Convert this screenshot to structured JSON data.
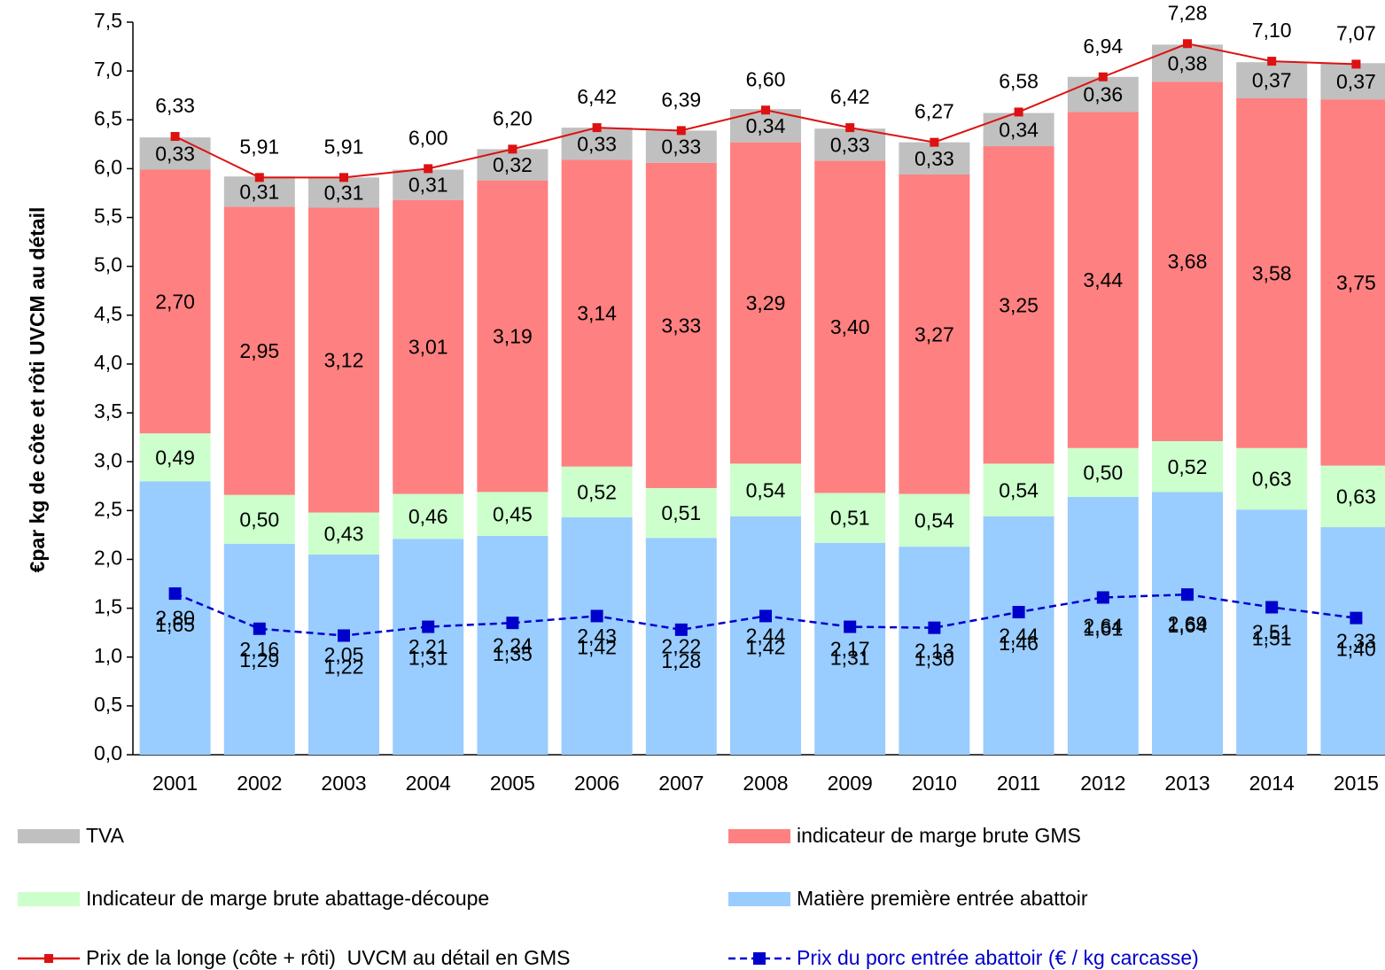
{
  "chart_data": {
    "type": "bar",
    "stacked": true,
    "ylabel": "€par kg de côte et rôti UVCM au détail",
    "categories": [
      "2001",
      "2002",
      "2003",
      "2004",
      "2005",
      "2006",
      "2007",
      "2008",
      "2009",
      "2010",
      "2011",
      "2012",
      "2013",
      "2014",
      "2015"
    ],
    "ylim": [
      0,
      7.5
    ],
    "yticks": [
      {
        "value": 0,
        "label": "0,0"
      },
      {
        "value": 0.5,
        "label": "0,5"
      },
      {
        "value": 1,
        "label": "1,0"
      },
      {
        "value": 1.5,
        "label": "1,5"
      },
      {
        "value": 2,
        "label": "2,0"
      },
      {
        "value": 2.5,
        "label": "2,5"
      },
      {
        "value": 3,
        "label": "3,0"
      },
      {
        "value": 3.5,
        "label": "3,5"
      },
      {
        "value": 4,
        "label": "4,0"
      },
      {
        "value": 4.5,
        "label": "4,5"
      },
      {
        "value": 5,
        "label": "5,0"
      },
      {
        "value": 5.5,
        "label": "5,5"
      },
      {
        "value": 6,
        "label": "6,0"
      },
      {
        "value": 6.5,
        "label": "6,5"
      },
      {
        "value": 7,
        "label": "7,0"
      },
      {
        "value": 7.5,
        "label": "7,5"
      }
    ],
    "grid": false,
    "series": [
      {
        "name": "Matière première entrée abattoir",
        "type": "bar",
        "color": "#99ccff",
        "values": [
          2.8,
          2.16,
          2.05,
          2.21,
          2.24,
          2.43,
          2.22,
          2.44,
          2.17,
          2.13,
          2.44,
          2.64,
          2.69,
          2.51,
          2.33
        ],
        "value_labels": [
          "2,80",
          "2,16",
          "2,05",
          "2,21",
          "2,24",
          "2,43",
          "2,22",
          "2,44",
          "2,17",
          "2,13",
          "2,44",
          "2,64",
          "2,69",
          "2,51",
          "2,33"
        ]
      },
      {
        "name": "Indicateur de marge brute abattage-découpe",
        "type": "bar",
        "color": "#ccffcc",
        "values": [
          0.49,
          0.5,
          0.43,
          0.46,
          0.45,
          0.52,
          0.51,
          0.54,
          0.51,
          0.54,
          0.54,
          0.5,
          0.52,
          0.63,
          0.63
        ],
        "value_labels": [
          "0,49",
          "0,50",
          "0,43",
          "0,46",
          "0,45",
          "0,52",
          "0,51",
          "0,54",
          "0,51",
          "0,54",
          "0,54",
          "0,50",
          "0,52",
          "0,63",
          "0,63"
        ]
      },
      {
        "name": "indicateur de marge brute GMS",
        "type": "bar",
        "color": "#ff8080",
        "values": [
          2.7,
          2.95,
          3.12,
          3.01,
          3.19,
          3.14,
          3.33,
          3.29,
          3.4,
          3.27,
          3.25,
          3.44,
          3.68,
          3.58,
          3.75
        ],
        "value_labels": [
          "2,70",
          "2,95",
          "3,12",
          "3,01",
          "3,19",
          "3,14",
          "3,33",
          "3,29",
          "3,40",
          "3,27",
          "3,25",
          "3,44",
          "3,68",
          "3,58",
          "3,75"
        ]
      },
      {
        "name": "TVA",
        "type": "bar",
        "color": "#c0c0c0",
        "values": [
          0.33,
          0.31,
          0.31,
          0.31,
          0.32,
          0.33,
          0.33,
          0.34,
          0.33,
          0.33,
          0.34,
          0.36,
          0.38,
          0.37,
          0.37
        ],
        "value_labels": [
          "0,33",
          "0,31",
          "0,31",
          "0,31",
          "0,32",
          "0,33",
          "0,33",
          "0,34",
          "0,33",
          "0,33",
          "0,34",
          "0,36",
          "0,38",
          "0,37",
          "0,37"
        ]
      },
      {
        "name": "Prix de la longe (côte + rôti)  UVCM au détail en GMS",
        "type": "line",
        "color": "#dd1111",
        "line_style": "solid",
        "label_position": "above",
        "values": [
          6.33,
          5.91,
          5.91,
          6.0,
          6.2,
          6.42,
          6.39,
          6.6,
          6.42,
          6.27,
          6.58,
          6.94,
          7.28,
          7.1,
          7.07
        ],
        "value_labels": [
          "6,33",
          "5,91",
          "5,91",
          "6,00",
          "6,20",
          "6,42",
          "6,39",
          "6,60",
          "6,42",
          "6,27",
          "6,58",
          "6,94",
          "7,28",
          "7,10",
          "7,07"
        ]
      },
      {
        "name": "Prix du porc entrée abattoir (€ / kg carcasse)",
        "type": "line",
        "color": "#0000cc",
        "line_style": "dashed",
        "label_position": "below",
        "values": [
          1.65,
          1.29,
          1.22,
          1.31,
          1.35,
          1.42,
          1.28,
          1.42,
          1.31,
          1.3,
          1.46,
          1.61,
          1.64,
          1.51,
          1.4
        ],
        "value_labels": [
          "1,65",
          "1,29",
          "1,22",
          "1,31",
          "1,35",
          "1,42",
          "1,28",
          "1,42",
          "1,31",
          "1,30",
          "1,46",
          "1,61",
          "1,64",
          "1,51",
          "1,40"
        ]
      }
    ]
  }
}
